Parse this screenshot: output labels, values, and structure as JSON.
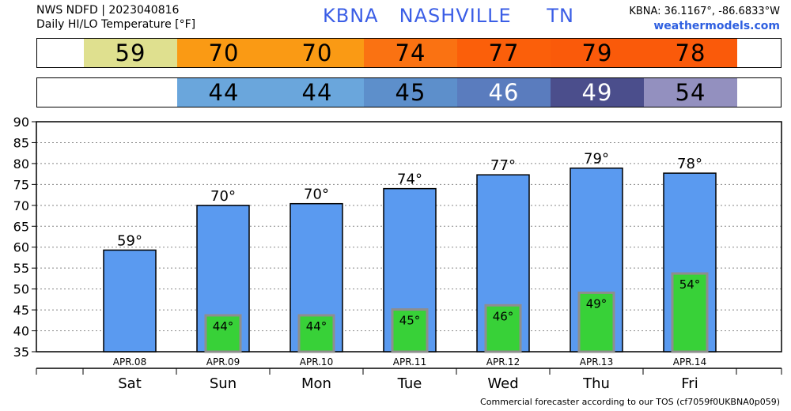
{
  "header": {
    "line1": "NWS NDFD | 2023040816",
    "line2": "Daily HI/LO Temperature [°F]",
    "station": "KBNA",
    "city": "NASHVILLE",
    "state": "TN",
    "coords": "KBNA: 36.1167°, -86.6833°W",
    "site": "weathermodels.com"
  },
  "hi_strip": [
    {
      "value": "59",
      "color": "#dfe08f"
    },
    {
      "value": "70",
      "color": "#fa9a14"
    },
    {
      "value": "70",
      "color": "#fa9a14"
    },
    {
      "value": "74",
      "color": "#fa7212"
    },
    {
      "value": "77",
      "color": "#fb5f0a"
    },
    {
      "value": "79",
      "color": "#fa5a0a"
    },
    {
      "value": "78",
      "color": "#fa5a0a"
    }
  ],
  "lo_strip": [
    {
      "value": "",
      "color": "#ffffff"
    },
    {
      "value": "44",
      "color": "#6aa6dc"
    },
    {
      "value": "44",
      "color": "#6aa6dc"
    },
    {
      "value": "45",
      "color": "#5d8fcb"
    },
    {
      "value": "46",
      "color": "#5a7cbe",
      "text_color": "#ffffff"
    },
    {
      "value": "49",
      "color": "#4b4e8c",
      "text_color": "#ffffff"
    },
    {
      "value": "54",
      "color": "#9390bf"
    }
  ],
  "chart_data": {
    "type": "bar",
    "categories": [
      "Sat",
      "Sun",
      "Mon",
      "Tue",
      "Wed",
      "Thu",
      "Fri"
    ],
    "dates": [
      "APR.08",
      "APR.09",
      "APR.10",
      "APR.11",
      "APR.12",
      "APR.13",
      "APR.14"
    ],
    "series": [
      {
        "values": [
          59.3,
          70,
          70.4,
          74,
          77.3,
          78.9,
          77.7
        ],
        "labels": [
          "59°",
          "70°",
          "70°",
          "74°",
          "77°",
          "79°",
          "78°"
        ],
        "color": "#5a9af0"
      },
      {
        "values": [
          null,
          43.7,
          43.7,
          45.1,
          46.1,
          49.1,
          53.7
        ],
        "labels": [
          "",
          "44°",
          "44°",
          "45°",
          "46°",
          "49°",
          "54°"
        ],
        "color": "#38d138"
      }
    ],
    "ylim": [
      35,
      90
    ],
    "yticks": [
      "35",
      "40",
      "45",
      "50",
      "55",
      "60",
      "65",
      "70",
      "75",
      "80",
      "85",
      "90"
    ],
    "grid": true
  },
  "footer": "Commercial forecaster according to our TOS (cf7059f0UKBNA0p059)"
}
